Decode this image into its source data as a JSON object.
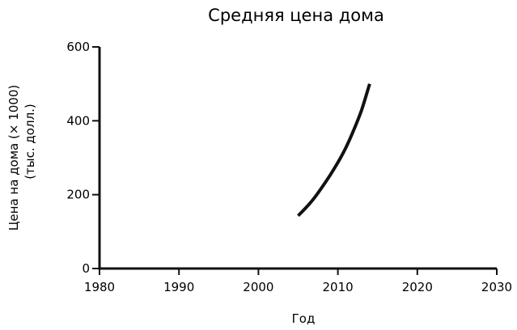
{
  "chart_data": {
    "type": "line",
    "title": "Средняя цена дома",
    "xlabel": "Год",
    "ylabel": [
      "Цена на дома (× 1000)",
      "(тыс. долл.)"
    ],
    "xlim": [
      1980,
      2030
    ],
    "ylim": [
      0,
      600
    ],
    "xticks": [
      1980,
      1990,
      2000,
      2010,
      2020,
      2030
    ],
    "yticks": [
      0,
      200,
      400,
      600
    ],
    "grid": false,
    "series": [
      {
        "color": "#111111",
        "x": [
          2005,
          2006,
          2007,
          2008,
          2009,
          2010,
          2011,
          2012,
          2013,
          2014
        ],
        "y": [
          143,
          165,
          190,
          220,
          252,
          287,
          327,
          375,
          430,
          500
        ]
      }
    ]
  }
}
